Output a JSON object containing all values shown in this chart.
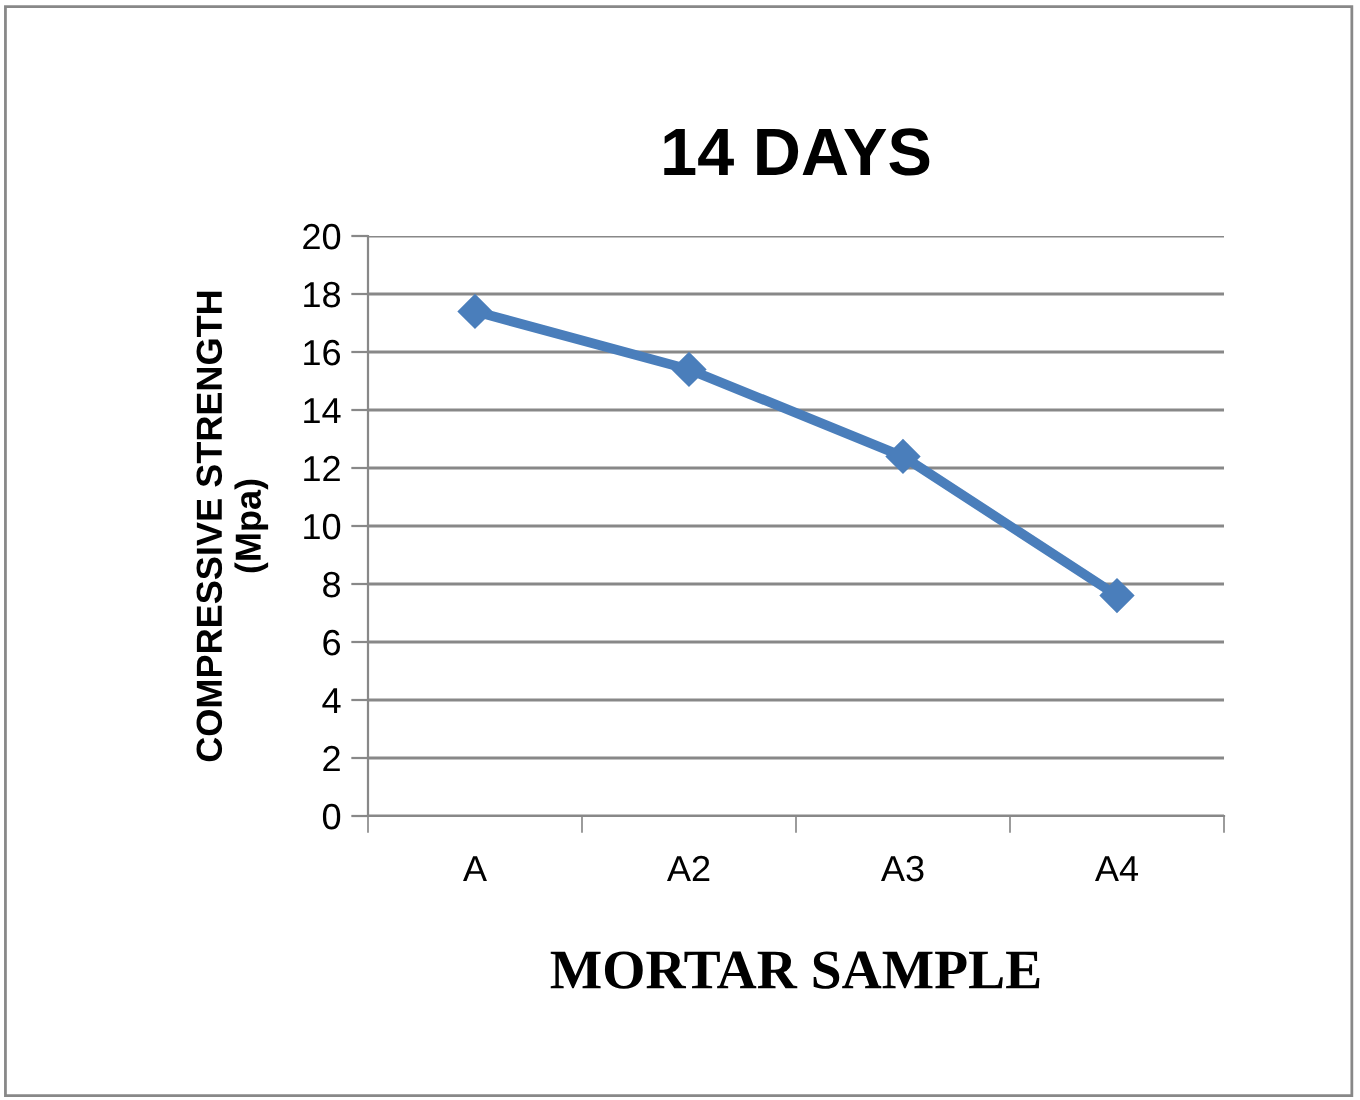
{
  "chart_data": {
    "type": "line",
    "title": "14 DAYS",
    "xlabel": "MORTAR SAMPLE",
    "ylabel": "COMPRESSIVE STRENGTH\n(Mpa)",
    "categories": [
      "A",
      "A2",
      "A3",
      "A4"
    ],
    "series": [
      {
        "color": "#4a7ebb",
        "values": [
          17.4,
          15.4,
          12.4,
          7.6
        ]
      }
    ],
    "ylim": [
      0,
      20
    ],
    "yticks": [
      0,
      2,
      4,
      6,
      8,
      10,
      12,
      14,
      16,
      18,
      20
    ],
    "grid": "y",
    "marker": "diamond",
    "line_style": "solid"
  }
}
